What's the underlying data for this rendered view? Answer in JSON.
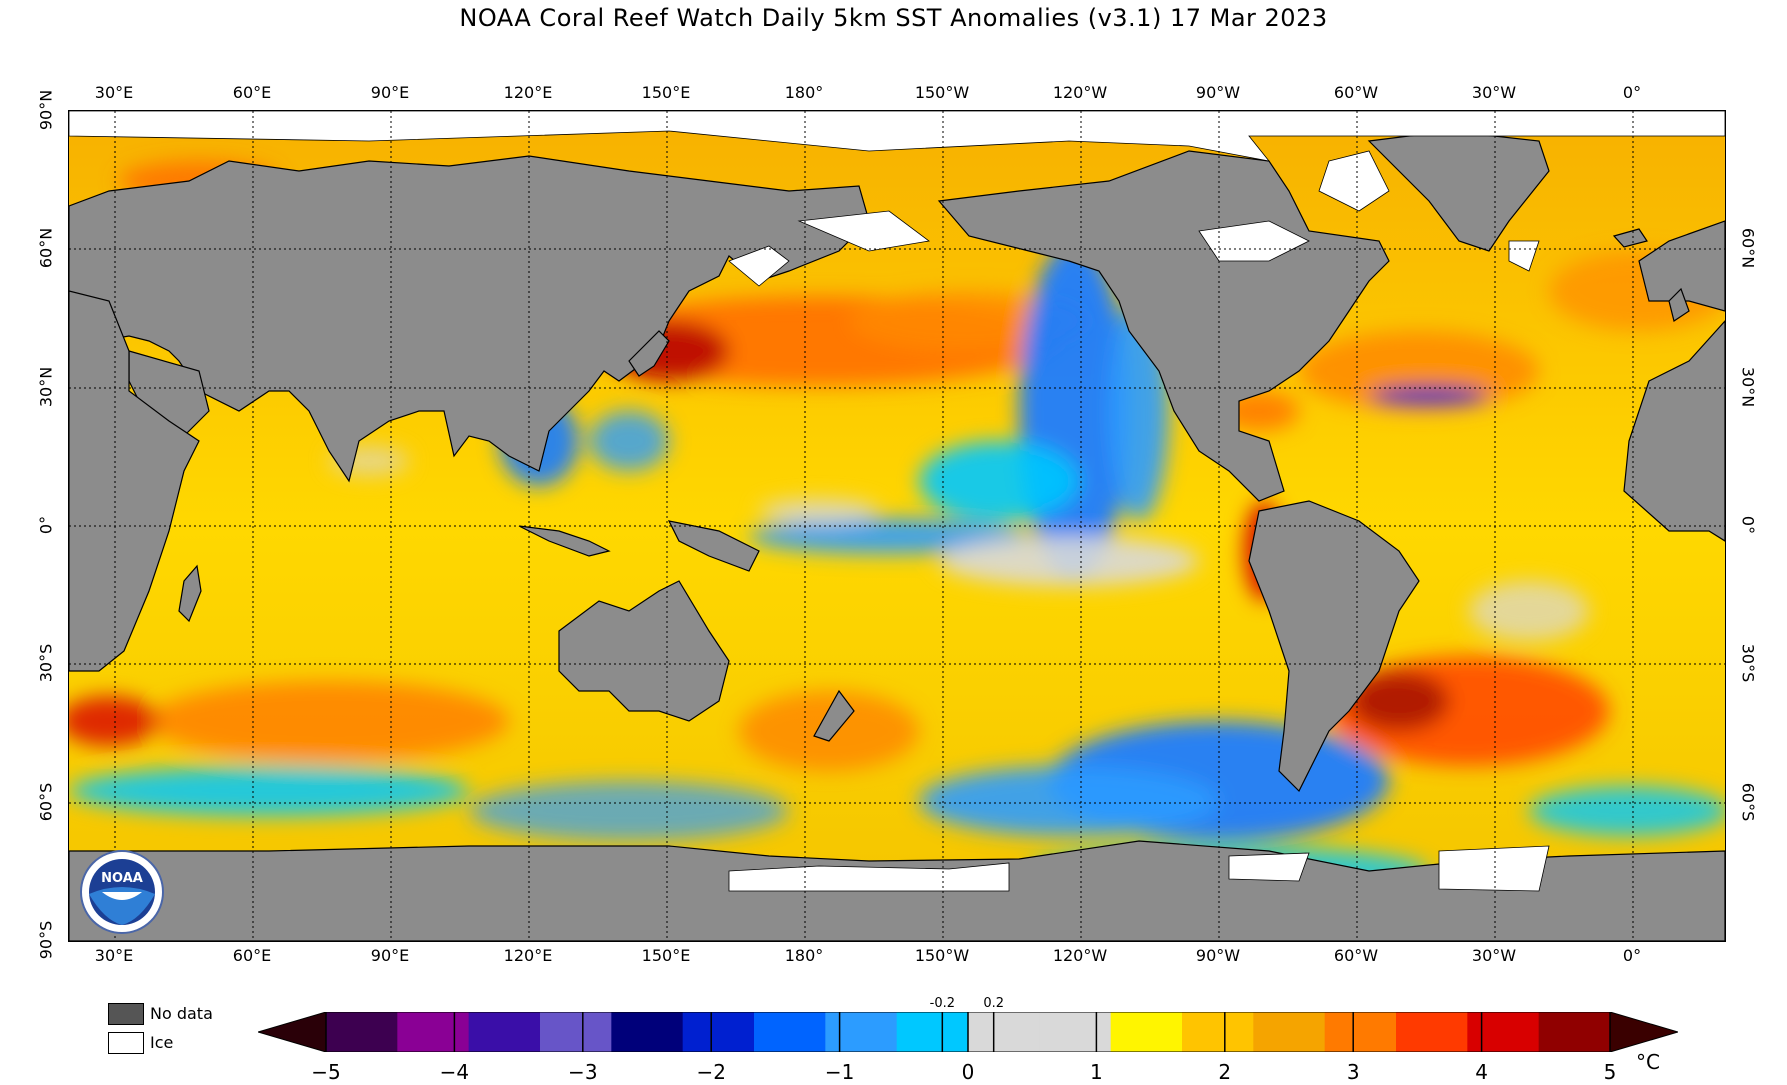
{
  "title": "NOAA Coral Reef Watch Daily 5km SST Anomalies  (v3.1)   17 Mar 2023",
  "map": {
    "lon_labels": [
      "30°E",
      "60°E",
      "90°E",
      "120°E",
      "150°E",
      "180°",
      "150°W",
      "120°W",
      "90°W",
      "60°W",
      "30°W",
      "0°"
    ],
    "lat_labels": [
      "90°N",
      "60°N",
      "30°N",
      "0°",
      "30°S",
      "60°S",
      "90°S"
    ],
    "lon_range": [
      20,
      380
    ],
    "lat_range": [
      -90,
      90
    ],
    "colors": {
      "land": "#8c8c8c",
      "ice": "#ffffff",
      "nodata": "#555555",
      "coast": "#000000",
      "grid": "#000000"
    }
  },
  "legend": {
    "nodata_label": "No data",
    "ice_label": "Ice"
  },
  "colorbar": {
    "ticks": [
      "−5",
      "−4",
      "−3",
      "−2",
      "−1",
      "0",
      "1",
      "2",
      "3",
      "4",
      "5"
    ],
    "tick_values": [
      -5,
      -4,
      -3,
      -2,
      -1,
      0,
      1,
      2,
      3,
      4,
      5
    ],
    "small_labels": [
      "-0.2",
      "0.2"
    ],
    "small_values": [
      -0.2,
      0.2
    ],
    "unit": "°C",
    "colors": [
      "#2a0008",
      "#3d0050",
      "#8a0095",
      "#3a0ea8",
      "#6755c8",
      "#00007a",
      "#0020d0",
      "#0064ff",
      "#2c9cff",
      "#00c8ff",
      "#d9d9d9",
      "#d9d9d9",
      "#fff500",
      "#ffc400",
      "#f5a400",
      "#ff7a00",
      "#ff3a00",
      "#d80000",
      "#900000",
      "#3a0000"
    ]
  },
  "logo_text": "NOAA"
}
